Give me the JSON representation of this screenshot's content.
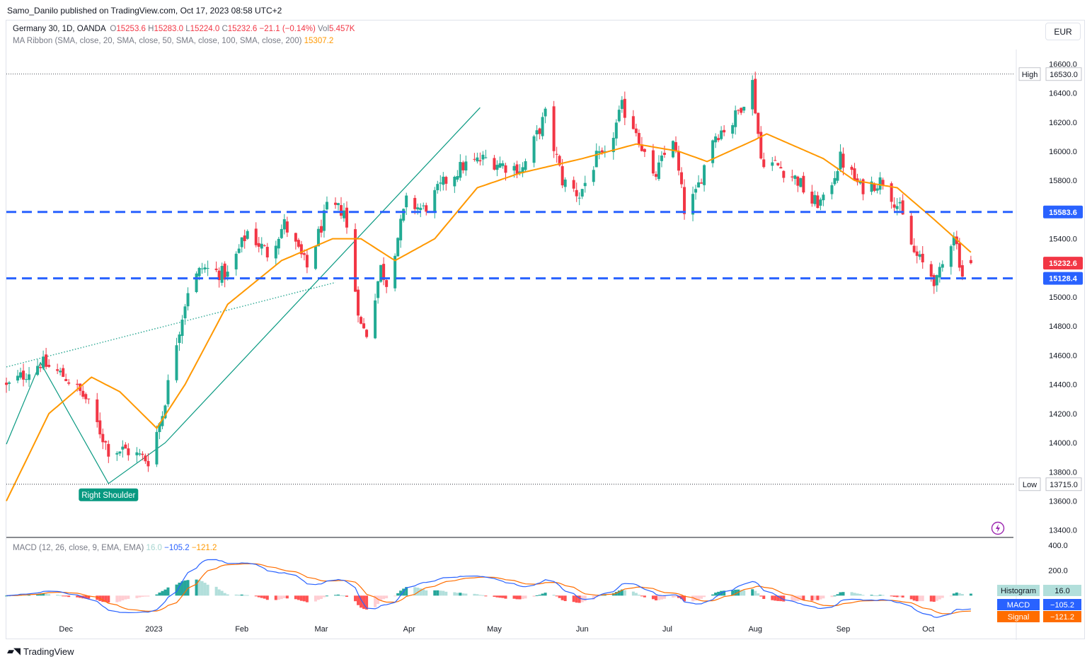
{
  "header": {
    "publisher": "Samo_Danilo published on TradingView.com, Oct 17, 2023 08:58 UTC+2"
  },
  "legend": {
    "symbol": "Germany 30, 1D, OANDA",
    "o_label": "O",
    "o_value": "15253.6",
    "h_label": "H",
    "h_value": "15283.0",
    "l_label": "L",
    "l_value": "15224.0",
    "c_label": "C",
    "c_value": "15232.6",
    "change": "−21.1 (−0.14%)",
    "vol_label": "Vol",
    "vol_value": "5.457K",
    "ma_title": "MA Ribbon (SMA, close, 20, SMA, close, 50, SMA, close, 100, SMA, close, 200)",
    "ma_value": "15307.2"
  },
  "currency_button": "EUR",
  "footer": {
    "brand": "TradingView"
  },
  "macd_legend": {
    "title": "MACD (12, 26, close, 9, EMA, EMA)",
    "histogram": "16.0",
    "macd": "−105.2",
    "signal": "−121.2"
  },
  "colors": {
    "up": "#22ab94",
    "down": "#f23645",
    "ma": "#ff9800",
    "level": "#2962ff",
    "pattern": "#089981",
    "macd": "#2962ff",
    "signal": "#ff6d00"
  },
  "chart_data": [
    {
      "type": "candlestick",
      "title": "Germany 30, 1D, OANDA",
      "y_ticks": [
        "16600.0",
        "16400.0",
        "16200.0",
        "16000.0",
        "15800.0",
        "15400.0",
        "15000.0",
        "14800.0",
        "14600.0",
        "14400.0",
        "14200.0",
        "14000.0",
        "13800.0",
        "13600.0",
        "13400.0"
      ],
      "y_tick_values": [
        16600,
        16400,
        16200,
        16000,
        15800,
        15400,
        15000,
        14800,
        14600,
        14400,
        14200,
        14000,
        13800,
        13600,
        13400
      ],
      "x_ticks": [
        "Dec",
        "2023",
        "Feb",
        "Mar",
        "Apr",
        "May",
        "Jun",
        "Jul",
        "Aug",
        "Sep",
        "Oct"
      ],
      "x_tick_dates": [
        "2022-12-01",
        "2023-01-01",
        "2023-02-01",
        "2023-03-01",
        "2023-04-01",
        "2023-05-01",
        "2023-06-01",
        "2023-07-01",
        "2023-08-01",
        "2023-09-01",
        "2023-10-01"
      ],
      "ylim": [
        13350,
        16660
      ],
      "xlim": [
        "2022-11-10",
        "2023-10-31"
      ],
      "grid": false,
      "levels": [
        {
          "name": "High",
          "value": 16530.0,
          "label": "16530.0"
        },
        {
          "name": "Low",
          "value": 13715.0,
          "label": "13715.0"
        },
        {
          "value": 15583.6,
          "label": "15583.6"
        },
        {
          "value": 15128.4,
          "label": "15128.4"
        }
      ],
      "last_price": {
        "value": 15232.6,
        "label": "15232.6"
      },
      "annotation": "Right Shoulder",
      "anchors": [
        {
          "date": "2022-11-10",
          "close": 14380
        },
        {
          "date": "2022-11-22",
          "close": 14550
        },
        {
          "date": "2022-12-01",
          "close": 14450
        },
        {
          "date": "2022-12-08",
          "close": 14300
        },
        {
          "date": "2022-12-16",
          "close": 13950
        },
        {
          "date": "2022-12-22",
          "close": 13950
        },
        {
          "date": "2022-12-30",
          "close": 13880
        },
        {
          "date": "2023-01-04",
          "close": 14200
        },
        {
          "date": "2023-01-09",
          "close": 14700
        },
        {
          "date": "2023-01-13",
          "close": 15050
        },
        {
          "date": "2023-01-18",
          "close": 15200
        },
        {
          "date": "2023-01-27",
          "close": 15150
        },
        {
          "date": "2023-02-03",
          "close": 15450
        },
        {
          "date": "2023-02-10",
          "close": 15300
        },
        {
          "date": "2023-02-16",
          "close": 15500
        },
        {
          "date": "2023-02-24",
          "close": 15200
        },
        {
          "date": "2023-03-03",
          "close": 15600
        },
        {
          "date": "2023-03-09",
          "close": 15600
        },
        {
          "date": "2023-03-13",
          "close": 15050
        },
        {
          "date": "2023-03-15",
          "close": 14800
        },
        {
          "date": "2023-03-17",
          "close": 14750
        },
        {
          "date": "2023-03-22",
          "close": 15200
        },
        {
          "date": "2023-03-24",
          "close": 15100
        },
        {
          "date": "2023-03-31",
          "close": 15650
        },
        {
          "date": "2023-04-06",
          "close": 15600
        },
        {
          "date": "2023-04-14",
          "close": 15800
        },
        {
          "date": "2023-04-20",
          "close": 15900
        },
        {
          "date": "2023-04-28",
          "close": 15950
        },
        {
          "date": "2023-05-05",
          "close": 15900
        },
        {
          "date": "2023-05-11",
          "close": 15880
        },
        {
          "date": "2023-05-19",
          "close": 16250
        },
        {
          "date": "2023-05-25",
          "close": 15800
        },
        {
          "date": "2023-05-31",
          "close": 15700
        },
        {
          "date": "2023-06-06",
          "close": 15950
        },
        {
          "date": "2023-06-09",
          "close": 15950
        },
        {
          "date": "2023-06-15",
          "close": 16300
        },
        {
          "date": "2023-06-20",
          "close": 16150
        },
        {
          "date": "2023-06-26",
          "close": 15800
        },
        {
          "date": "2023-07-03",
          "close": 16100
        },
        {
          "date": "2023-07-07",
          "close": 15600
        },
        {
          "date": "2023-07-11",
          "close": 15700
        },
        {
          "date": "2023-07-17",
          "close": 16100
        },
        {
          "date": "2023-07-24",
          "close": 16200
        },
        {
          "date": "2023-07-31",
          "close": 16470
        },
        {
          "date": "2023-08-03",
          "close": 15950
        },
        {
          "date": "2023-08-09",
          "close": 15900
        },
        {
          "date": "2023-08-16",
          "close": 15800
        },
        {
          "date": "2023-08-21",
          "close": 15650
        },
        {
          "date": "2023-08-25",
          "close": 15650
        },
        {
          "date": "2023-08-31",
          "close": 15950
        },
        {
          "date": "2023-09-07",
          "close": 15750
        },
        {
          "date": "2023-09-15",
          "close": 15800
        },
        {
          "date": "2023-09-21",
          "close": 15600
        },
        {
          "date": "2023-09-26",
          "close": 15300
        },
        {
          "date": "2023-10-04",
          "close": 15100
        },
        {
          "date": "2023-10-10",
          "close": 15450
        },
        {
          "date": "2023-10-13",
          "close": 15150
        },
        {
          "date": "2023-10-16",
          "close": 15232.6
        }
      ],
      "ma20_anchors": [
        {
          "date": "2022-11-10",
          "close": 13600
        },
        {
          "date": "2022-11-25",
          "close": 14200
        },
        {
          "date": "2022-12-10",
          "close": 14450
        },
        {
          "date": "2022-12-20",
          "close": 14350
        },
        {
          "date": "2023-01-02",
          "close": 14100
        },
        {
          "date": "2023-01-12",
          "close": 14400
        },
        {
          "date": "2023-01-27",
          "close": 14950
        },
        {
          "date": "2023-02-15",
          "close": 15250
        },
        {
          "date": "2023-03-05",
          "close": 15400
        },
        {
          "date": "2023-03-15",
          "close": 15400
        },
        {
          "date": "2023-03-27",
          "close": 15250
        },
        {
          "date": "2023-04-10",
          "close": 15400
        },
        {
          "date": "2023-04-25",
          "close": 15750
        },
        {
          "date": "2023-05-10",
          "close": 15850
        },
        {
          "date": "2023-06-01",
          "close": 15950
        },
        {
          "date": "2023-06-20",
          "close": 16050
        },
        {
          "date": "2023-07-05",
          "close": 16000
        },
        {
          "date": "2023-07-15",
          "close": 15930
        },
        {
          "date": "2023-08-01",
          "close": 16080
        },
        {
          "date": "2023-08-05",
          "close": 16120
        },
        {
          "date": "2023-08-25",
          "close": 15950
        },
        {
          "date": "2023-09-05",
          "close": 15800
        },
        {
          "date": "2023-09-20",
          "close": 15750
        },
        {
          "date": "2023-10-02",
          "close": 15550
        },
        {
          "date": "2023-10-16",
          "close": 15307.2
        }
      ],
      "pattern_lines": [
        {
          "style": "solid",
          "points": [
            {
              "date": "2022-11-10",
              "close": 13990
            },
            {
              "date": "2022-11-22",
              "close": 14550
            },
            {
              "date": "2022-12-16",
              "close": 13720
            },
            {
              "date": "2023-01-05",
              "close": 14000
            },
            {
              "date": "2023-04-26",
              "close": 16300
            }
          ]
        },
        {
          "style": "dotted",
          "points": [
            {
              "date": "2022-11-10",
              "close": 14520
            },
            {
              "date": "2023-03-06",
              "close": 15100
            }
          ]
        }
      ]
    },
    {
      "type": "macd",
      "title": "MACD (12, 26, close, 9, EMA, EMA)",
      "y_ticks": [
        "400.0",
        "200.0"
      ],
      "y_tick_values": [
        400,
        200
      ],
      "ylim": [
        -200,
        450
      ],
      "histogram_label": "Histogram",
      "histogram_value": 16.0,
      "macd_label": "MACD",
      "macd_value": -105.2,
      "signal_label": "Signal",
      "signal_value": -121.2
    }
  ]
}
